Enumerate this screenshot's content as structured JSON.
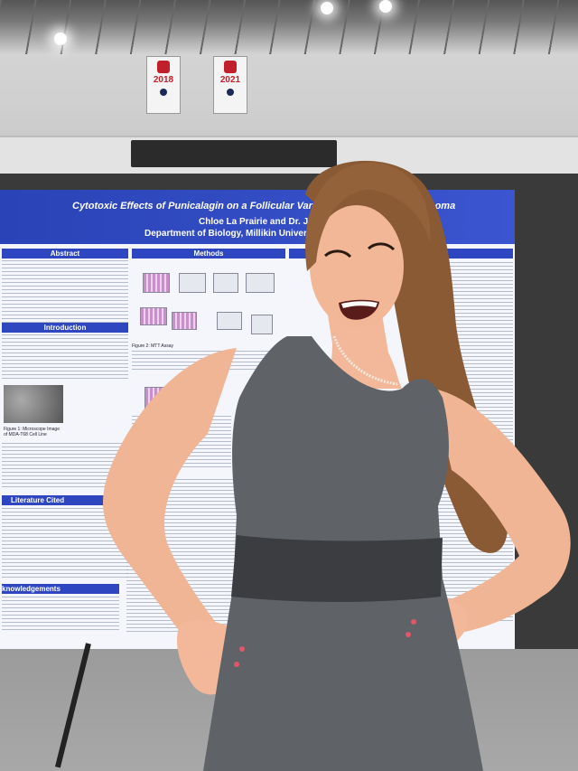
{
  "banners": [
    {
      "text": "2018"
    },
    {
      "text": "2021"
    }
  ],
  "poster": {
    "title": "Cytotoxic Effects of Punicalagin on a Follicular Varian",
    "title_suffix": "noma",
    "authors": "Chloe La Prairie and Dr. Jennifer Sch",
    "department": "Department of Biology, Millikin University, De",
    "sections": {
      "abstract": "Abstract",
      "methods": "Methods",
      "introduction": "Introduction",
      "literature": "Literature Cited",
      "acknowledgements": "knowledgements"
    },
    "figure_caption": "Figure 1: Microscope Image of MDA-T68 Cell Line",
    "mtt_caption": "Figure 2: MTT Assay"
  },
  "colors": {
    "poster_blue": "#2e47c0",
    "dress": "#5f6266",
    "hair": "#8a5a35"
  }
}
